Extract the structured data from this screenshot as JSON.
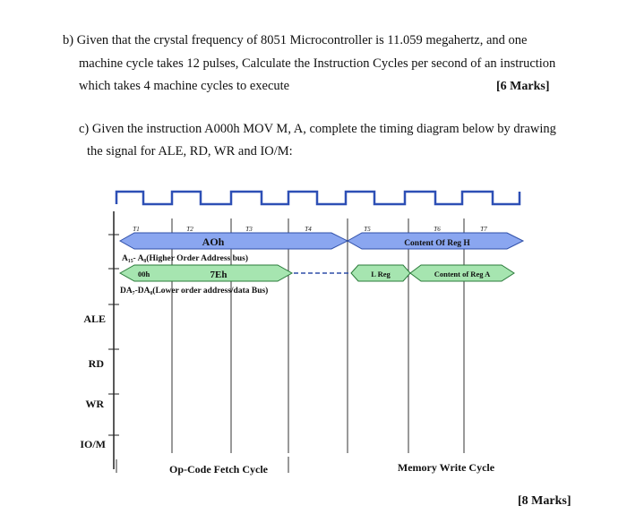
{
  "question_b": {
    "line1": "b) Given that the crystal frequency of 8051 Microcontroller is 11.059 megahertz, and one",
    "line2": "machine cycle takes 12 pulses, Calculate the Instruction Cycles per second of an instruction",
    "line3": "which takes 4 machine cycles to execute",
    "marks": "[6 Marks]"
  },
  "question_c": {
    "line1": "c) Given the instruction A000h MOV M, A, complete the timing diagram below by drawing",
    "line2": "the signal for ALE, RD, WR and IO/M:",
    "marks": "[8 Marks]"
  },
  "diagram": {
    "t_labels": [
      "T1",
      "T2",
      "T3",
      "T4",
      "T5",
      "T6",
      "T7"
    ],
    "addr_high_value": "AOh",
    "addr_high_label": "A₁₅- A₈(Higher Order Address bus)",
    "reg_h_content": "Content Of Reg H",
    "addr_low_value_1": "00h",
    "addr_low_value_2": "7Eh",
    "addr_low_label": "DA₇-DA₀(Lower order address/data Bus)",
    "l_reg": "L Reg",
    "reg_a_content": "Content of Reg A",
    "signals": [
      "ALE",
      "RD",
      "WR",
      "IO/M"
    ],
    "opcode_fetch": "Op-Code Fetch Cycle",
    "memory_write": "Memory Write Cycle",
    "colors": {
      "bus_fill": "#8aa6f0",
      "green_fill": "#a6e5b0",
      "clock_stroke": "#2d4fb5"
    }
  }
}
